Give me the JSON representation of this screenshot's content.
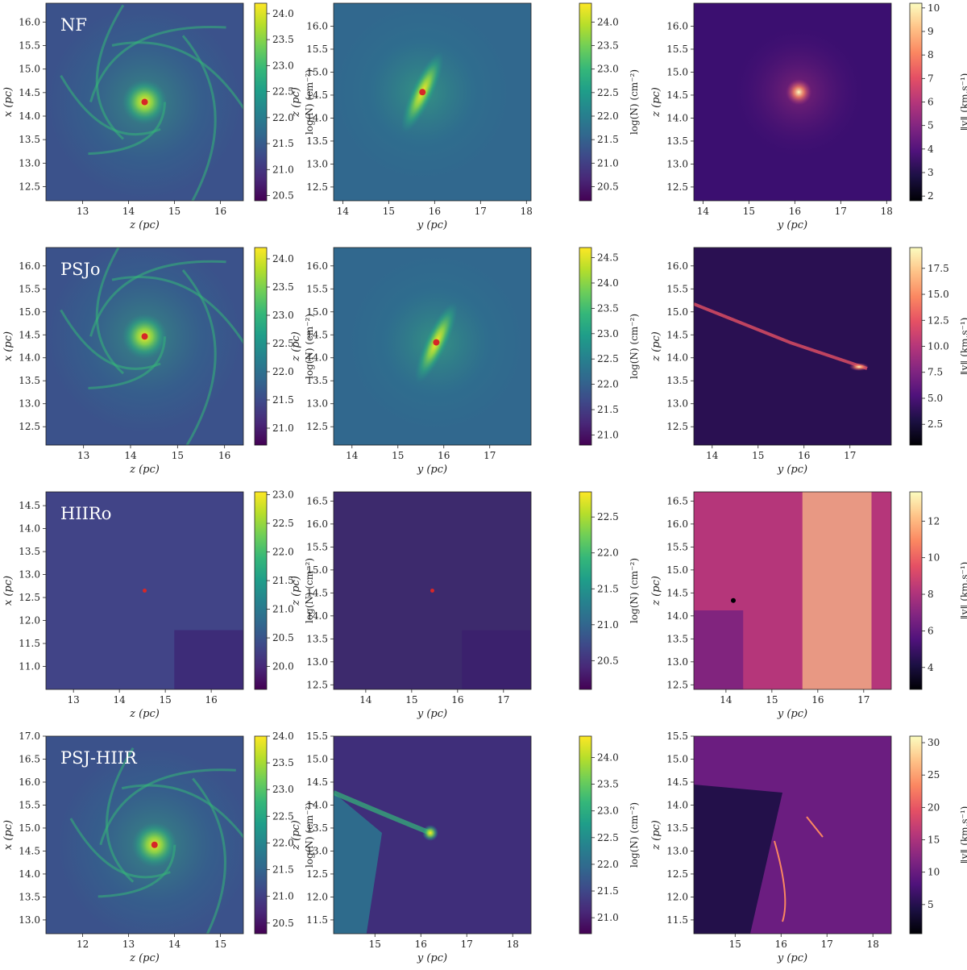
{
  "colormaps": {
    "viridis": [
      "#440154",
      "#482878",
      "#3e4989",
      "#31688e",
      "#26828e",
      "#1f9e89",
      "#35b779",
      "#6ece58",
      "#b5de2b",
      "#fde725"
    ],
    "magma": [
      "#000004",
      "#1c1044",
      "#4f127b",
      "#812581",
      "#b5367a",
      "#e55064",
      "#fb8761",
      "#fec287",
      "#fcfdbf"
    ]
  },
  "chart_data": [
    {
      "type": "heatmap",
      "sim_label": "NF",
      "xlabel": "z (pc)",
      "ylabel": "x (pc)",
      "xlim": [
        12.2,
        16.5
      ],
      "ylim": [
        12.2,
        16.4
      ],
      "xticks": [
        "13",
        "14",
        "15",
        "16"
      ],
      "yticks": [
        "12.5",
        "13.0",
        "13.5",
        "14.0",
        "14.5",
        "15.0",
        "15.5",
        "16.0"
      ],
      "colorbar": {
        "label": "log(N) (cm⁻²)",
        "cmap": "viridis",
        "range": [
          20.4,
          24.2
        ],
        "ticks": [
          "20.5",
          "21.0",
          "21.5",
          "22.0",
          "22.5",
          "23.0",
          "23.5",
          "24.0"
        ]
      }
    },
    {
      "type": "heatmap",
      "sim_label": "",
      "xlabel": "y (pc)",
      "ylabel": "z (pc)",
      "xlim": [
        13.8,
        18.1
      ],
      "ylim": [
        12.2,
        16.5
      ],
      "xticks": [
        "14",
        "15",
        "16",
        "17",
        "18"
      ],
      "yticks": [
        "12.5",
        "13.0",
        "13.5",
        "14.0",
        "14.5",
        "15.0",
        "15.5",
        "16.0"
      ],
      "colorbar": {
        "label": "log(N) (cm⁻²)",
        "cmap": "viridis",
        "range": [
          20.2,
          24.4
        ],
        "ticks": [
          "20.5",
          "21.0",
          "21.5",
          "22.0",
          "22.5",
          "23.0",
          "23.5",
          "24.0"
        ]
      }
    },
    {
      "type": "heatmap",
      "sim_label": "",
      "xlabel": "y (pc)",
      "ylabel": "z (pc)",
      "xlim": [
        13.8,
        18.1
      ],
      "ylim": [
        12.2,
        16.5
      ],
      "xticks": [
        "14",
        "15",
        "16",
        "17",
        "18"
      ],
      "yticks": [
        "12.5",
        "13.0",
        "13.5",
        "14.0",
        "14.5",
        "15.0",
        "15.5",
        "16.0"
      ],
      "colorbar": {
        "label": "‖v‖ (km.s⁻¹)",
        "cmap": "magma",
        "range": [
          1.8,
          10.2
        ],
        "ticks": [
          "2",
          "3",
          "4",
          "5",
          "6",
          "7",
          "8",
          "9",
          "10"
        ]
      }
    },
    {
      "type": "heatmap",
      "sim_label": "PSJo",
      "xlabel": "z (pc)",
      "ylabel": "x (pc)",
      "xlim": [
        12.2,
        16.4
      ],
      "ylim": [
        12.1,
        16.4
      ],
      "xticks": [
        "13",
        "14",
        "15",
        "16"
      ],
      "yticks": [
        "12.5",
        "13.0",
        "13.5",
        "14.0",
        "14.5",
        "15.0",
        "15.5",
        "16.0"
      ],
      "colorbar": {
        "label": "log(N) (cm⁻²)",
        "cmap": "viridis",
        "range": [
          20.7,
          24.2
        ],
        "ticks": [
          "21.0",
          "21.5",
          "22.0",
          "22.5",
          "23.0",
          "23.5",
          "24.0"
        ]
      }
    },
    {
      "type": "heatmap",
      "sim_label": "",
      "xlabel": "y (pc)",
      "ylabel": "z (pc)",
      "xlim": [
        13.6,
        17.9
      ],
      "ylim": [
        12.1,
        16.4
      ],
      "xticks": [
        "14",
        "15",
        "16",
        "17"
      ],
      "yticks": [
        "12.5",
        "13.0",
        "13.5",
        "14.0",
        "14.5",
        "15.0",
        "15.5",
        "16.0"
      ],
      "colorbar": {
        "label": "log(N) (cm⁻²)",
        "cmap": "viridis",
        "range": [
          20.8,
          24.7
        ],
        "ticks": [
          "21.0",
          "21.5",
          "22.0",
          "22.5",
          "23.0",
          "23.5",
          "24.0",
          "24.5"
        ]
      }
    },
    {
      "type": "heatmap",
      "sim_label": "",
      "xlabel": "y (pc)",
      "ylabel": "z (pc)",
      "xlim": [
        13.6,
        17.9
      ],
      "ylim": [
        12.1,
        16.4
      ],
      "xticks": [
        "14",
        "15",
        "16",
        "17"
      ],
      "yticks": [
        "12.5",
        "13.0",
        "13.5",
        "14.0",
        "14.5",
        "15.0",
        "15.5",
        "16.0"
      ],
      "colorbar": {
        "label": "‖v‖ (km.s⁻¹)",
        "cmap": "magma",
        "range": [
          0.5,
          19.5
        ],
        "ticks": [
          "2.5",
          "5.0",
          "7.5",
          "10.0",
          "12.5",
          "15.0",
          "17.5"
        ]
      }
    },
    {
      "type": "heatmap",
      "sim_label": "HIIRo",
      "xlabel": "z (pc)",
      "ylabel": "x (pc)",
      "xlim": [
        12.4,
        16.7
      ],
      "ylim": [
        10.5,
        14.8
      ],
      "xticks": [
        "13",
        "14",
        "15",
        "16"
      ],
      "yticks": [
        "11.0",
        "11.5",
        "12.0",
        "12.5",
        "13.0",
        "13.5",
        "14.0",
        "14.5"
      ],
      "colorbar": {
        "label": "log(N) (cm⁻²)",
        "cmap": "viridis",
        "range": [
          19.6,
          23.05
        ],
        "ticks": [
          "20.0",
          "20.5",
          "21.0",
          "21.5",
          "22.0",
          "22.5",
          "23.0"
        ]
      }
    },
    {
      "type": "heatmap",
      "sim_label": "",
      "xlabel": "y (pc)",
      "ylabel": "z (pc)",
      "xlim": [
        13.3,
        17.6
      ],
      "ylim": [
        12.4,
        16.7
      ],
      "xticks": [
        "14",
        "15",
        "16",
        "17"
      ],
      "yticks": [
        "12.5",
        "13.0",
        "13.5",
        "14.0",
        "14.5",
        "15.0",
        "15.5",
        "16.0",
        "16.5"
      ],
      "colorbar": {
        "label": "log(N) (cm⁻²)",
        "cmap": "viridis",
        "range": [
          20.1,
          22.85
        ],
        "ticks": [
          "20.5",
          "21.0",
          "21.5",
          "22.0",
          "22.5"
        ]
      }
    },
    {
      "type": "heatmap",
      "sim_label": "",
      "xlabel": "y (pc)",
      "ylabel": "z (pc)",
      "xlim": [
        13.3,
        17.6
      ],
      "ylim": [
        12.4,
        16.7
      ],
      "xticks": [
        "14",
        "15",
        "16",
        "17"
      ],
      "yticks": [
        "12.5",
        "13.0",
        "13.5",
        "14.0",
        "14.5",
        "15.0",
        "15.5",
        "16.0",
        "16.5"
      ],
      "colorbar": {
        "label": "‖v‖ (km.s⁻¹)",
        "cmap": "magma",
        "range": [
          2.8,
          13.6
        ],
        "ticks": [
          "4",
          "6",
          "8",
          "10",
          "12"
        ]
      }
    },
    {
      "type": "heatmap",
      "sim_label": "PSJ-HIIR",
      "xlabel": "z (pc)",
      "ylabel": "x (pc)",
      "xlim": [
        11.2,
        15.5
      ],
      "ylim": [
        12.7,
        17.0
      ],
      "xticks": [
        "12",
        "13",
        "14",
        "15"
      ],
      "yticks": [
        "13.0",
        "13.5",
        "14.0",
        "14.5",
        "15.0",
        "15.5",
        "16.0",
        "16.5",
        "17.0"
      ],
      "colorbar": {
        "label": "log(N) (cm⁻²)",
        "cmap": "viridis",
        "range": [
          20.3,
          24.0
        ],
        "ticks": [
          "20.5",
          "21.0",
          "21.5",
          "22.0",
          "22.5",
          "23.0",
          "23.5",
          "24.0"
        ]
      }
    },
    {
      "type": "heatmap",
      "sim_label": "",
      "xlabel": "y (pc)",
      "ylabel": "z (pc)",
      "xlim": [
        14.1,
        18.4
      ],
      "ylim": [
        11.2,
        15.5
      ],
      "xticks": [
        "15",
        "16",
        "17",
        "18"
      ],
      "yticks": [
        "11.5",
        "12.0",
        "12.5",
        "13.0",
        "13.5",
        "14.0",
        "14.5",
        "15.0",
        "15.5"
      ],
      "colorbar": {
        "label": "log(N) (cm⁻²)",
        "cmap": "viridis",
        "range": [
          20.7,
          24.4
        ],
        "ticks": [
          "21.0",
          "21.5",
          "22.0",
          "22.5",
          "23.0",
          "23.5",
          "24.0"
        ]
      }
    },
    {
      "type": "heatmap",
      "sim_label": "",
      "xlabel": "y (pc)",
      "ylabel": "z (pc)",
      "xlim": [
        14.1,
        18.4
      ],
      "ylim": [
        11.2,
        15.5
      ],
      "xticks": [
        "15",
        "16",
        "17",
        "18"
      ],
      "yticks": [
        "11.5",
        "12.0",
        "12.5",
        "13.0",
        "13.5",
        "14.0",
        "14.5",
        "15.0",
        "15.5"
      ],
      "colorbar": {
        "label": "‖v‖ (km.s⁻¹)",
        "cmap": "magma",
        "range": [
          0.5,
          31
        ],
        "ticks": [
          "5",
          "10",
          "15",
          "20",
          "25",
          "30"
        ]
      }
    }
  ]
}
